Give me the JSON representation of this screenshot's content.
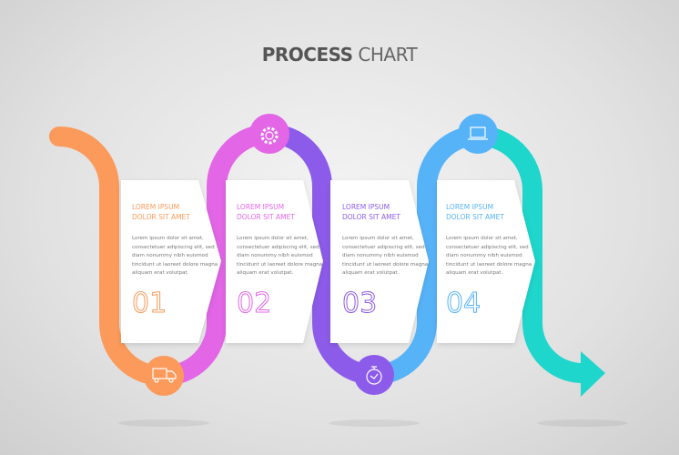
{
  "title": {
    "bold": "PROCESS",
    "light": "CHART"
  },
  "steps": [
    {
      "heading1": "LOREM IPSUM",
      "heading2": "DOLOR SIT AMET",
      "body": "Lorem ipsum dolor sit amet, consectetuer adipiscing elit, sed diam nonummy nibh euismod tincidunt ut laoreet dolore magna aliquam erat volutpat.",
      "number": "01",
      "color": "#fb9a5a"
    },
    {
      "heading1": "LOREM IPSUM",
      "heading2": "DOLOR SIT AMET",
      "body": "Lorem ipsum dolor sit amet, consectetuer adipiscing elit, sed diam nonummy nibh euismod tincidunt ut laoreet dolore magna aliquam erat volutpat.",
      "number": "02",
      "color": "#e266e6"
    },
    {
      "heading1": "LOREM IPSUM",
      "heading2": "DOLOR SIT AMET",
      "body": "Lorem ipsum dolor sit amet, consectetuer adipiscing elit, sed diam nonummy nibh euismod tincidunt ut laoreet dolore magna aliquam erat volutpat.",
      "number": "03",
      "color": "#8d5bea"
    },
    {
      "heading1": "LOREM IPSUM",
      "heading2": "DOLOR SIT AMET",
      "body": "Lorem ipsum dolor sit amet, consectetuer adipiscing elit, sed diam nonummy nibh euismod tincidunt ut laoreet dolore magna aliquam erat volutpat.",
      "number": "04",
      "color": "#57b3f8"
    }
  ],
  "end_color": "#1ed6cc",
  "icons": [
    "truck-icon",
    "gear-icon",
    "stopwatch-icon",
    "laptop-icon"
  ]
}
